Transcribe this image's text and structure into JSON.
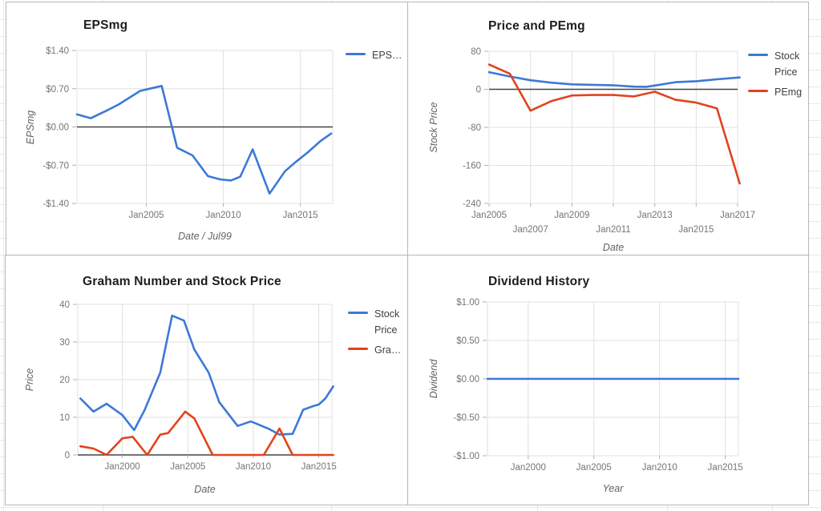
{
  "colors": {
    "blue": "#3d78d8",
    "red": "#e2431e",
    "grid": "#e0e0e0",
    "zero": "#424242",
    "tick": "#b0b0b0"
  },
  "chart_data": [
    {
      "type": "line",
      "title": "EPSmg",
      "xlabel": "Date / Jul99",
      "ylabel": "EPSmg",
      "xlim": [
        2000.5,
        2017.1
      ],
      "ylim": [
        -1.4,
        1.4
      ],
      "grid": true,
      "legend_position": "right",
      "yticks": [
        {
          "label": "$1.40",
          "value": 1.4
        },
        {
          "label": "$0.70",
          "value": 0.7
        },
        {
          "label": "$0.00",
          "value": 0
        },
        {
          "label": "-$0.70",
          "value": -0.7
        },
        {
          "label": "-$1.40",
          "value": -1.4
        }
      ],
      "xticks": [
        {
          "label": "Jan2005",
          "value": 2005,
          "row": 0
        },
        {
          "label": "Jan2010",
          "value": 2010,
          "row": 0
        },
        {
          "label": "Jan2015",
          "value": 2015,
          "row": 0
        }
      ],
      "series": [
        {
          "name": "EPSmg",
          "color": "blue",
          "points": [
            [
              2000.5,
              0.23
            ],
            [
              2001.4,
              0.16
            ],
            [
              2002.5,
              0.31
            ],
            [
              2003.2,
              0.41
            ],
            [
              2004.6,
              0.66
            ],
            [
              2005.2,
              0.7
            ],
            [
              2006.0,
              0.75
            ],
            [
              2007.0,
              -0.38
            ],
            [
              2008.0,
              -0.52
            ],
            [
              2009.0,
              -0.9
            ],
            [
              2009.8,
              -0.96
            ],
            [
              2010.5,
              -0.98
            ],
            [
              2011.1,
              -0.91
            ],
            [
              2011.9,
              -0.41
            ],
            [
              2013.0,
              -1.22
            ],
            [
              2014.0,
              -0.81
            ],
            [
              2014.7,
              -0.64
            ],
            [
              2015.5,
              -0.46
            ],
            [
              2016.3,
              -0.26
            ],
            [
              2017.0,
              -0.12
            ]
          ]
        }
      ],
      "legend": [
        {
          "label": "EPS…",
          "color": "blue"
        }
      ]
    },
    {
      "type": "line",
      "title": "Price and PEmg",
      "xlabel": "Date",
      "ylabel": "Stock Price",
      "xlim": [
        2005,
        2017
      ],
      "ylim": [
        -240,
        80
      ],
      "grid": true,
      "legend_position": "right",
      "yticks": [
        {
          "label": "80",
          "value": 80
        },
        {
          "label": "0",
          "value": 0
        },
        {
          "label": "-80",
          "value": -80
        },
        {
          "label": "-160",
          "value": -160
        },
        {
          "label": "-240",
          "value": -240
        }
      ],
      "xticks": [
        {
          "label": "Jan2005",
          "value": 2005,
          "row": 0
        },
        {
          "label": "Jan2007",
          "value": 2007,
          "row": 1
        },
        {
          "label": "Jan2009",
          "value": 2009,
          "row": 0
        },
        {
          "label": "Jan2011",
          "value": 2011,
          "row": 1
        },
        {
          "label": "Jan2013",
          "value": 2013,
          "row": 0
        },
        {
          "label": "Jan2015",
          "value": 2015,
          "row": 1
        },
        {
          "label": "Jan2017",
          "value": 2017,
          "row": 0
        }
      ],
      "series": [
        {
          "name": "Stock Price",
          "color": "blue",
          "points": [
            [
              2005,
              36
            ],
            [
              2006,
              27
            ],
            [
              2007,
              19
            ],
            [
              2008,
              14
            ],
            [
              2009,
              10.5
            ],
            [
              2010,
              9.5
            ],
            [
              2011,
              8.5
            ],
            [
              2012,
              5.5
            ],
            [
              2012.6,
              5.2
            ],
            [
              2013,
              8
            ],
            [
              2014,
              15
            ],
            [
              2015,
              17
            ],
            [
              2016,
              21
            ],
            [
              2017.1,
              25
            ]
          ]
        },
        {
          "name": "PEmg",
          "color": "red",
          "points": [
            [
              2005,
              52
            ],
            [
              2006,
              33
            ],
            [
              2007,
              -45
            ],
            [
              2008,
              -25
            ],
            [
              2009,
              -13
            ],
            [
              2010,
              -12
            ],
            [
              2011,
              -12
            ],
            [
              2012,
              -15
            ],
            [
              2013,
              -5
            ],
            [
              2014,
              -22
            ],
            [
              2015,
              -28
            ],
            [
              2016,
              -40
            ],
            [
              2017.1,
              -198
            ]
          ]
        }
      ],
      "legend": [
        {
          "label": "Stock Price",
          "color": "blue"
        },
        {
          "label": "PEmg",
          "color": "red"
        }
      ]
    },
    {
      "type": "line",
      "title": "Graham Number and Stock Price",
      "xlabel": "Date",
      "ylabel": "Price",
      "xlim": [
        1996.6,
        2016.0
      ],
      "ylim": [
        0,
        40
      ],
      "grid": true,
      "legend_position": "right",
      "yticks": [
        {
          "label": "40",
          "value": 40
        },
        {
          "label": "30",
          "value": 30
        },
        {
          "label": "20",
          "value": 20
        },
        {
          "label": "10",
          "value": 10
        },
        {
          "label": "0",
          "value": 0
        }
      ],
      "xticks": [
        {
          "label": "Jan2000",
          "value": 2000,
          "row": 0
        },
        {
          "label": "Jan2005",
          "value": 2005,
          "row": 0
        },
        {
          "label": "Jan2010",
          "value": 2010,
          "row": 0
        },
        {
          "label": "Jan2015",
          "value": 2015,
          "row": 0
        }
      ],
      "series": [
        {
          "name": "Stock Price",
          "color": "blue",
          "points": [
            [
              1996.8,
              15.0
            ],
            [
              1997.8,
              11.5
            ],
            [
              1998.8,
              13.6
            ],
            [
              2000.0,
              10.6
            ],
            [
              2000.9,
              6.6
            ],
            [
              2001.7,
              11.9
            ],
            [
              2002.9,
              21.9
            ],
            [
              2003.8,
              37.0
            ],
            [
              2004.7,
              35.7
            ],
            [
              2005.5,
              28.0
            ],
            [
              2006.6,
              21.8
            ],
            [
              2007.4,
              14.0
            ],
            [
              2008.8,
              7.7
            ],
            [
              2009.8,
              8.9
            ],
            [
              2010.1,
              8.5
            ],
            [
              2011.2,
              6.9
            ],
            [
              2012.0,
              5.4
            ],
            [
              2013.0,
              5.6
            ],
            [
              2013.8,
              12.0
            ],
            [
              2014.6,
              13.0
            ],
            [
              2015.0,
              13.4
            ],
            [
              2015.5,
              15.0
            ],
            [
              2016.1,
              18.2
            ]
          ]
        },
        {
          "name": "Graham Number",
          "color": "red",
          "points": [
            [
              1996.8,
              2.3
            ],
            [
              1997.8,
              1.7
            ],
            [
              1998.8,
              0
            ],
            [
              2000.0,
              4.4
            ],
            [
              2000.8,
              4.8
            ],
            [
              2001.9,
              0
            ],
            [
              2002.9,
              5.4
            ],
            [
              2003.5,
              5.8
            ],
            [
              2004.8,
              11.5
            ],
            [
              2005.5,
              9.7
            ],
            [
              2006.9,
              0
            ],
            [
              2010.8,
              0
            ],
            [
              2012.0,
              7.0
            ],
            [
              2013.0,
              0
            ],
            [
              2016.1,
              0
            ]
          ]
        }
      ],
      "legend": [
        {
          "label": "Stock Price",
          "color": "blue"
        },
        {
          "label": "Gra…",
          "color": "red"
        }
      ]
    },
    {
      "type": "line",
      "title": "Dividend History",
      "xlabel": "Year",
      "ylabel": "Dividend",
      "xlim": [
        1996.9,
        2016.0
      ],
      "ylim": [
        -1,
        1
      ],
      "grid": true,
      "legend_position": "none",
      "yticks": [
        {
          "label": "$1.00",
          "value": 1
        },
        {
          "label": "$0.50",
          "value": 0.5
        },
        {
          "label": "$0.00",
          "value": 0
        },
        {
          "label": "-$0.50",
          "value": -0.5
        },
        {
          "label": "-$1.00",
          "value": -1
        }
      ],
      "xticks": [
        {
          "label": "Jan2000",
          "value": 2000,
          "row": 0
        },
        {
          "label": "Jan2005",
          "value": 2005,
          "row": 0
        },
        {
          "label": "Jan2010",
          "value": 2010,
          "row": 0
        },
        {
          "label": "Jan2015",
          "value": 2015,
          "row": 0
        }
      ],
      "series": [
        {
          "name": "Dividend",
          "color": "blue",
          "points": [
            [
              1996.9,
              0
            ],
            [
              2016.0,
              0
            ]
          ]
        }
      ],
      "legend": []
    }
  ]
}
